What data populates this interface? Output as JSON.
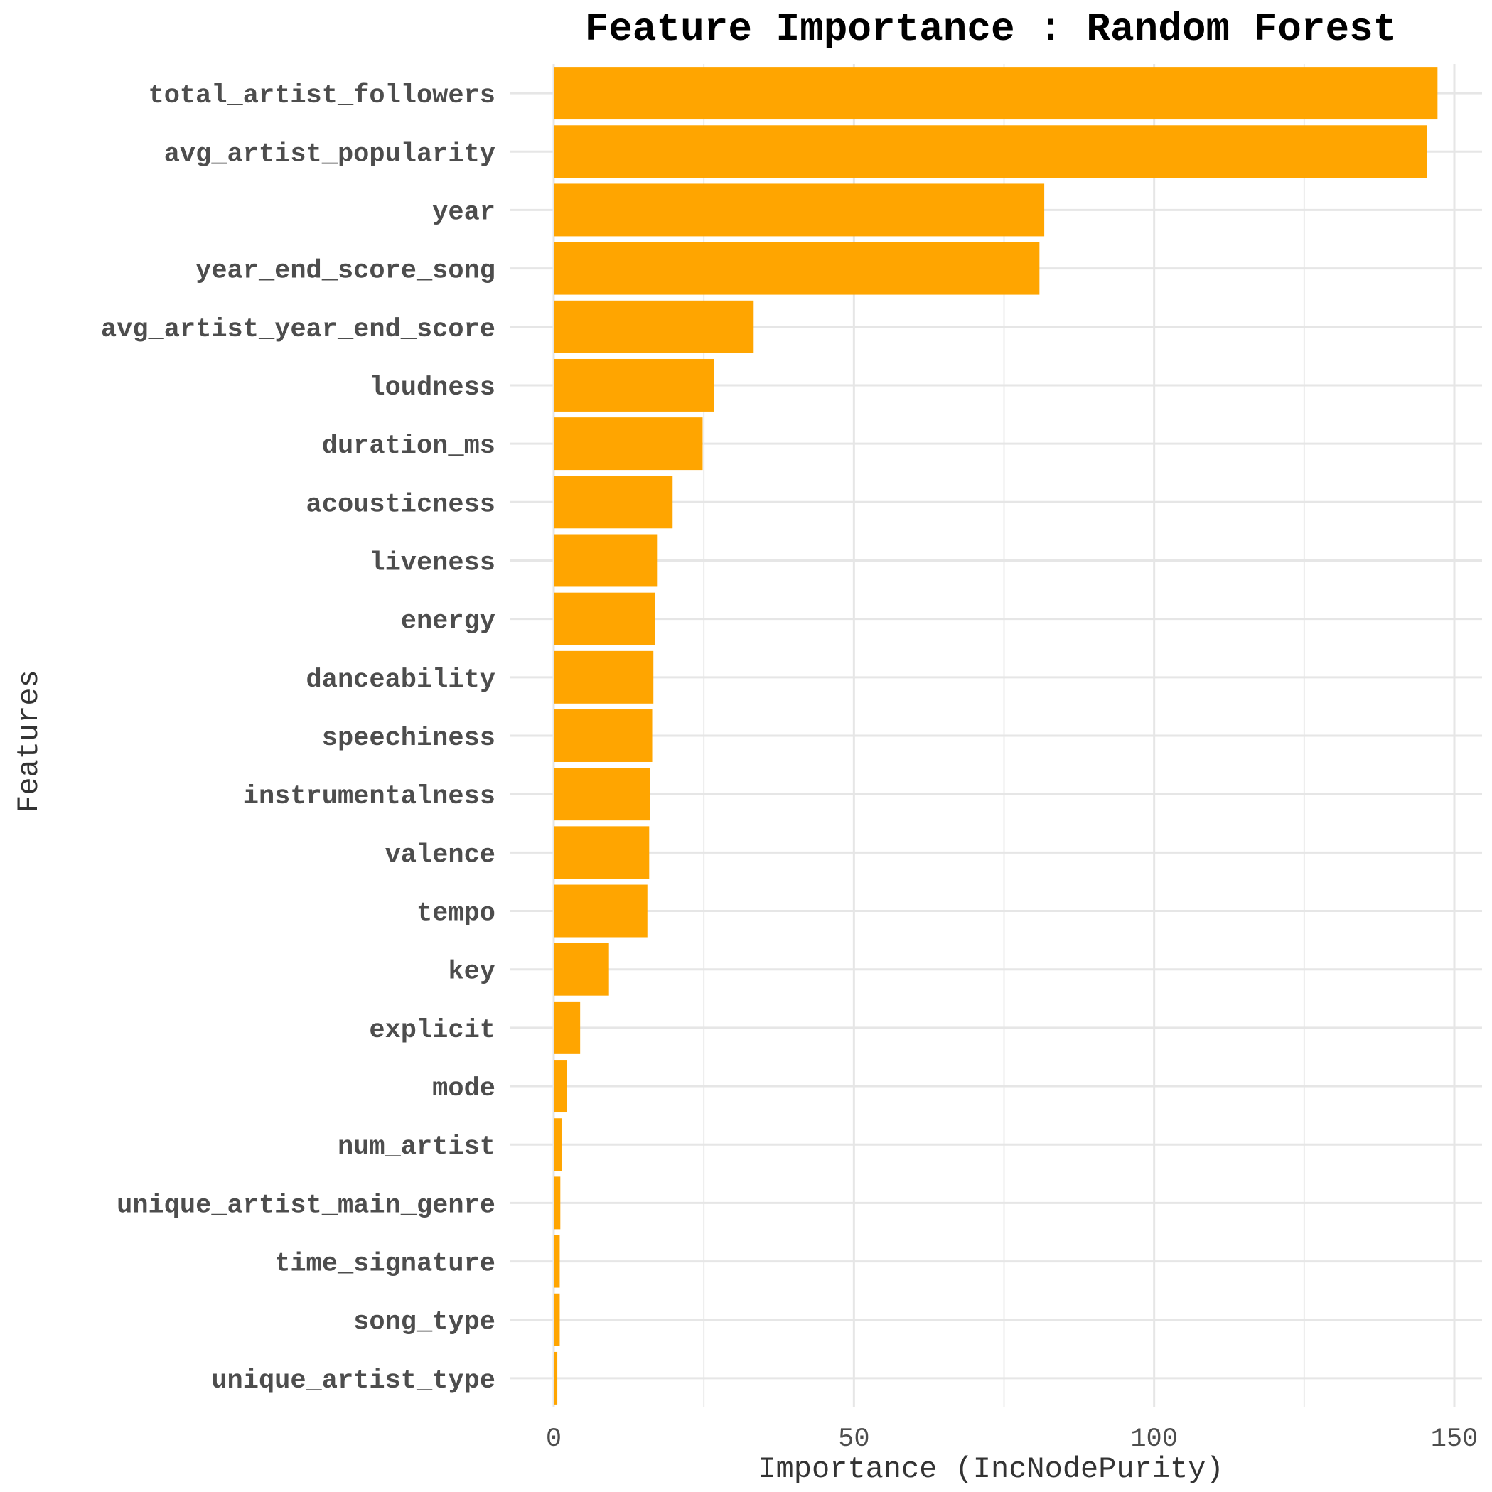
{
  "chart_data": {
    "type": "bar",
    "orientation": "horizontal",
    "title": "Feature Importance : Random Forest",
    "xlabel": "Importance (IncNodePurity)",
    "ylabel": "Features",
    "xlim": [
      0,
      153
    ],
    "x_ticks": [
      0,
      50,
      100,
      150
    ],
    "x_tick_labels": [
      "0",
      "50",
      "100",
      "150"
    ],
    "bar_color": "#FFA500",
    "grid": true,
    "categories": [
      "total_artist_followers",
      "avg_artist_popularity",
      "year",
      "year_end_score_song",
      "avg_artist_year_end_score",
      "loudness",
      "duration_ms",
      "acousticness",
      "liveness",
      "energy",
      "danceability",
      "speechiness",
      "instrumentalness",
      "valence",
      "tempo",
      "key",
      "explicit",
      "mode",
      "num_artist",
      "unique_artist_main_genre",
      "time_signature",
      "song_type",
      "unique_artist_type"
    ],
    "values": [
      147.2,
      145.5,
      81.7,
      80.9,
      33.3,
      26.7,
      24.8,
      19.8,
      17.2,
      16.9,
      16.6,
      16.4,
      16.1,
      15.9,
      15.6,
      9.2,
      4.4,
      2.2,
      1.3,
      1.1,
      1.0,
      1.0,
      0.6
    ]
  }
}
